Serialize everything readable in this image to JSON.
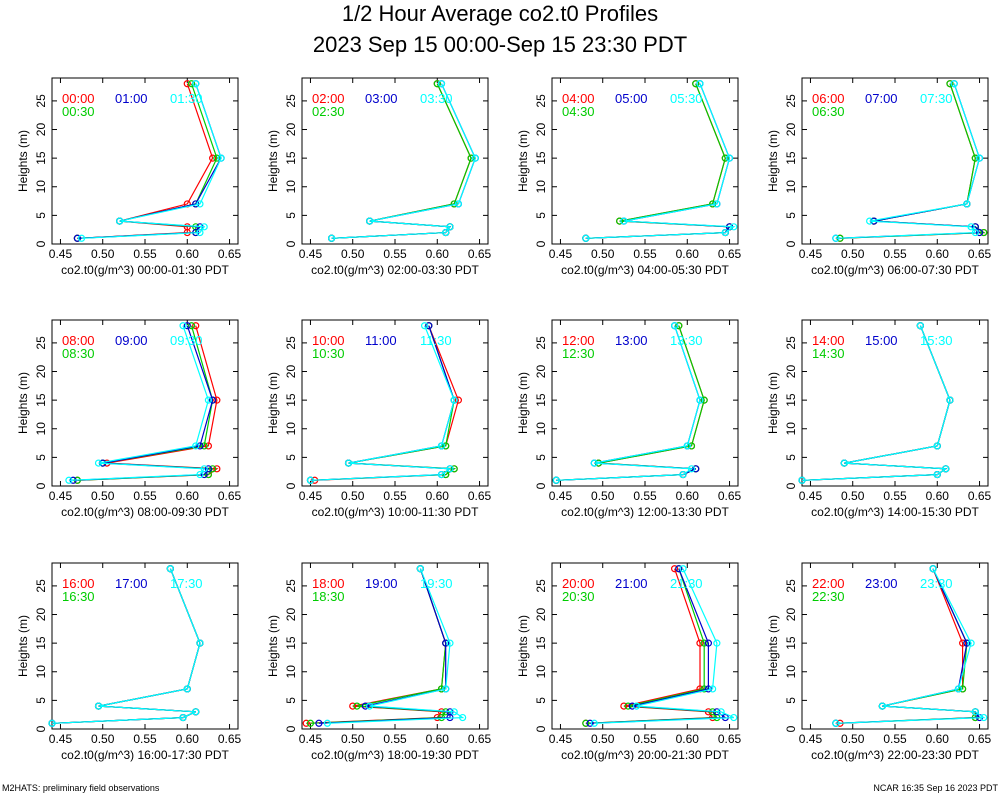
{
  "title": "1/2 Hour Average co2.t0 Profiles",
  "subtitle": "2023 Sep 15 00:00-Sep 15 23:30 PDT",
  "footer_left": "M2HATS: preliminary field observations",
  "footer_right": "NCAR 16:35 Sep 16 2023 PDT",
  "colors": {
    "series1": "#ff0000",
    "series2": "#00cc00",
    "series3": "#0000cc",
    "series4": "#00ffff"
  },
  "chart_data": [
    {
      "type": "line",
      "xlabel": "co2.t0(g/m^3) 00:00-01:30 PDT",
      "ylabel": "Heights (m)",
      "xlim": [
        0.44,
        0.66
      ],
      "ylim": [
        0,
        29
      ],
      "xticks": [
        0.45,
        0.5,
        0.55,
        0.6,
        0.65
      ],
      "yticks": [
        0,
        5,
        10,
        15,
        20,
        25
      ],
      "heights": [
        1,
        2,
        3,
        4,
        7,
        15,
        28
      ],
      "series": [
        {
          "name": "00:00",
          "values": [
            0.47,
            0.6,
            0.6,
            0.52,
            0.6,
            0.63,
            0.6
          ]
        },
        {
          "name": "00:30",
          "values": [
            0.47,
            0.61,
            0.61,
            0.52,
            0.61,
            0.635,
            0.605
          ]
        },
        {
          "name": "01:00",
          "values": [
            0.47,
            0.61,
            0.615,
            0.52,
            0.61,
            0.64,
            0.61
          ]
        },
        {
          "name": "01:30",
          "values": [
            0.475,
            0.615,
            0.62,
            0.52,
            0.615,
            0.64,
            0.61
          ]
        }
      ]
    },
    {
      "type": "line",
      "xlabel": "co2.t0(g/m^3) 02:00-03:30 PDT",
      "ylabel": "Heights (m)",
      "xlim": [
        0.44,
        0.66
      ],
      "ylim": [
        0,
        29
      ],
      "xticks": [
        0.45,
        0.5,
        0.55,
        0.6,
        0.65
      ],
      "yticks": [
        0,
        5,
        10,
        15,
        20,
        25
      ],
      "heights": [
        1,
        2,
        3,
        4,
        7,
        15,
        28
      ],
      "series": [
        {
          "name": "02:00",
          "values": [
            0.475,
            0.61,
            0.615,
            0.52,
            0.62,
            0.64,
            0.6
          ]
        },
        {
          "name": "02:30",
          "values": [
            0.475,
            0.61,
            0.615,
            0.52,
            0.62,
            0.64,
            0.6
          ]
        },
        {
          "name": "03:00",
          "values": [
            0.475,
            0.61,
            0.615,
            0.52,
            0.625,
            0.645,
            0.605
          ]
        },
        {
          "name": "03:30",
          "values": [
            0.475,
            0.61,
            0.615,
            0.52,
            0.625,
            0.645,
            0.605
          ]
        }
      ]
    },
    {
      "type": "line",
      "xlabel": "co2.t0(g/m^3) 04:00-05:30 PDT",
      "ylabel": "Heights (m)",
      "xlim": [
        0.44,
        0.66
      ],
      "ylim": [
        0,
        29
      ],
      "xticks": [
        0.45,
        0.5,
        0.55,
        0.6,
        0.65
      ],
      "yticks": [
        0,
        5,
        10,
        15,
        20,
        25
      ],
      "heights": [
        1,
        2,
        3,
        4,
        7,
        15,
        28
      ],
      "series": [
        {
          "name": "04:00",
          "values": [
            0.48,
            0.645,
            0.65,
            0.52,
            0.63,
            0.645,
            0.61
          ]
        },
        {
          "name": "04:30",
          "values": [
            0.48,
            0.645,
            0.65,
            0.52,
            0.63,
            0.645,
            0.61
          ]
        },
        {
          "name": "05:00",
          "values": [
            0.48,
            0.645,
            0.65,
            0.525,
            0.635,
            0.65,
            0.615
          ]
        },
        {
          "name": "05:30",
          "values": [
            0.48,
            0.645,
            0.655,
            0.525,
            0.635,
            0.65,
            0.615
          ]
        }
      ]
    },
    {
      "type": "line",
      "xlabel": "co2.t0(g/m^3) 06:00-07:30 PDT",
      "ylabel": "Heights (m)",
      "xlim": [
        0.44,
        0.66
      ],
      "ylim": [
        0,
        29
      ],
      "xticks": [
        0.45,
        0.5,
        0.55,
        0.6,
        0.65
      ],
      "yticks": [
        0,
        5,
        10,
        15,
        20,
        25
      ],
      "heights": [
        1,
        2,
        3,
        4,
        7,
        15,
        28
      ],
      "series": [
        {
          "name": "06:00",
          "values": [
            0.485,
            0.655,
            0.645,
            0.525,
            0.635,
            0.645,
            0.615
          ]
        },
        {
          "name": "06:30",
          "values": [
            0.485,
            0.655,
            0.645,
            0.525,
            0.635,
            0.645,
            0.615
          ]
        },
        {
          "name": "07:00",
          "values": [
            0.48,
            0.65,
            0.645,
            0.525,
            0.635,
            0.65,
            0.62
          ]
        },
        {
          "name": "07:30",
          "values": [
            0.48,
            0.645,
            0.64,
            0.52,
            0.635,
            0.65,
            0.62
          ]
        }
      ]
    },
    {
      "type": "line",
      "xlabel": "co2.t0(g/m^3) 08:00-09:30 PDT",
      "ylabel": "Heights (m)",
      "xlim": [
        0.44,
        0.66
      ],
      "ylim": [
        0,
        29
      ],
      "xticks": [
        0.45,
        0.5,
        0.55,
        0.6,
        0.65
      ],
      "yticks": [
        0,
        5,
        10,
        15,
        20,
        25
      ],
      "heights": [
        1,
        2,
        3,
        4,
        7,
        15,
        28
      ],
      "series": [
        {
          "name": "08:00",
          "values": [
            0.47,
            0.625,
            0.635,
            0.505,
            0.625,
            0.635,
            0.61
          ]
        },
        {
          "name": "08:30",
          "values": [
            0.47,
            0.625,
            0.63,
            0.5,
            0.62,
            0.63,
            0.605
          ]
        },
        {
          "name": "09:00",
          "values": [
            0.465,
            0.62,
            0.625,
            0.5,
            0.615,
            0.63,
            0.6
          ]
        },
        {
          "name": "09:30",
          "values": [
            0.46,
            0.615,
            0.62,
            0.495,
            0.61,
            0.625,
            0.595
          ]
        }
      ]
    },
    {
      "type": "line",
      "xlabel": "co2.t0(g/m^3) 10:00-11:30 PDT",
      "ylabel": "Heights (m)",
      "xlim": [
        0.44,
        0.66
      ],
      "ylim": [
        0,
        29
      ],
      "xticks": [
        0.45,
        0.5,
        0.55,
        0.6,
        0.65
      ],
      "yticks": [
        0,
        5,
        10,
        15,
        20,
        25
      ],
      "heights": [
        1,
        2,
        3,
        4,
        7,
        15,
        28
      ],
      "series": [
        {
          "name": "10:00",
          "values": [
            0.455,
            0.61,
            0.62,
            0.495,
            0.61,
            0.625,
            0.59
          ]
        },
        {
          "name": "10:30",
          "values": [
            0.45,
            0.61,
            0.62,
            0.495,
            0.61,
            0.62,
            0.59
          ]
        },
        {
          "name": "11:00",
          "values": [
            0.45,
            0.605,
            0.615,
            0.495,
            0.605,
            0.62,
            0.59
          ]
        },
        {
          "name": "11:30",
          "values": [
            0.45,
            0.605,
            0.615,
            0.495,
            0.605,
            0.62,
            0.585
          ]
        }
      ]
    },
    {
      "type": "line",
      "xlabel": "co2.t0(g/m^3) 12:00-13:30 PDT",
      "ylabel": "Heights (m)",
      "xlim": [
        0.44,
        0.66
      ],
      "ylim": [
        0,
        29
      ],
      "xticks": [
        0.45,
        0.5,
        0.55,
        0.6,
        0.65
      ],
      "yticks": [
        0,
        5,
        10,
        15,
        20,
        25
      ],
      "heights": [
        1,
        2,
        3,
        4,
        7,
        15,
        28
      ],
      "series": [
        {
          "name": "12:00",
          "values": [
            0.445,
            0.595,
            0.61,
            0.495,
            0.605,
            0.62,
            0.59
          ]
        },
        {
          "name": "12:30",
          "values": [
            0.445,
            0.595,
            0.61,
            0.495,
            0.605,
            0.62,
            0.59
          ]
        },
        {
          "name": "13:00",
          "values": [
            0.445,
            0.595,
            0.61,
            0.49,
            0.6,
            0.615,
            0.585
          ]
        },
        {
          "name": "13:30",
          "values": [
            0.445,
            0.595,
            0.605,
            0.49,
            0.6,
            0.615,
            0.585
          ]
        }
      ]
    },
    {
      "type": "line",
      "xlabel": "co2.t0(g/m^3) 14:00-15:30 PDT",
      "ylabel": "Heights (m)",
      "xlim": [
        0.44,
        0.66
      ],
      "ylim": [
        0,
        29
      ],
      "xticks": [
        0.45,
        0.5,
        0.55,
        0.6,
        0.65
      ],
      "yticks": [
        0,
        5,
        10,
        15,
        20,
        25
      ],
      "heights": [
        1,
        2,
        3,
        4,
        7,
        15,
        28
      ],
      "series": [
        {
          "name": "14:00",
          "values": [
            0.44,
            0.6,
            0.61,
            0.49,
            0.6,
            0.615,
            0.58
          ]
        },
        {
          "name": "14:30",
          "values": [
            0.44,
            0.6,
            0.61,
            0.49,
            0.6,
            0.615,
            0.58
          ]
        },
        {
          "name": "15:00",
          "values": [
            0.44,
            0.6,
            0.61,
            0.49,
            0.6,
            0.615,
            0.58
          ]
        },
        {
          "name": "15:30",
          "values": [
            0.44,
            0.6,
            0.61,
            0.49,
            0.6,
            0.615,
            0.58
          ]
        }
      ]
    },
    {
      "type": "line",
      "xlabel": "co2.t0(g/m^3) 16:00-17:30 PDT",
      "ylabel": "Heights (m)",
      "xlim": [
        0.44,
        0.66
      ],
      "ylim": [
        0,
        29
      ],
      "xticks": [
        0.45,
        0.5,
        0.55,
        0.6,
        0.65
      ],
      "yticks": [
        0,
        5,
        10,
        15,
        20,
        25
      ],
      "heights": [
        1,
        2,
        3,
        4,
        7,
        15,
        28
      ],
      "series": [
        {
          "name": "16:00",
          "values": [
            0.44,
            0.595,
            0.61,
            0.495,
            0.6,
            0.615,
            0.58
          ]
        },
        {
          "name": "16:30",
          "values": [
            0.44,
            0.595,
            0.61,
            0.495,
            0.6,
            0.615,
            0.58
          ]
        },
        {
          "name": "17:00",
          "values": [
            0.44,
            0.595,
            0.61,
            0.495,
            0.6,
            0.615,
            0.58
          ]
        },
        {
          "name": "17:30",
          "values": [
            0.44,
            0.595,
            0.61,
            0.495,
            0.6,
            0.615,
            0.58
          ]
        }
      ]
    },
    {
      "type": "line",
      "xlabel": "co2.t0(g/m^3) 18:00-19:30 PDT",
      "ylabel": "Heights (m)",
      "xlim": [
        0.44,
        0.66
      ],
      "ylim": [
        0,
        29
      ],
      "xticks": [
        0.45,
        0.5,
        0.55,
        0.6,
        0.65
      ],
      "yticks": [
        0,
        5,
        10,
        15,
        20,
        25
      ],
      "heights": [
        1,
        2,
        3,
        4,
        7,
        15,
        28
      ],
      "series": [
        {
          "name": "18:00",
          "values": [
            0.445,
            0.6,
            0.605,
            0.5,
            0.605,
            0.61,
            0.58
          ]
        },
        {
          "name": "18:30",
          "values": [
            0.45,
            0.605,
            0.61,
            0.505,
            0.605,
            0.61,
            0.58
          ]
        },
        {
          "name": "19:00",
          "values": [
            0.46,
            0.615,
            0.615,
            0.515,
            0.61,
            0.61,
            0.58
          ]
        },
        {
          "name": "19:30",
          "values": [
            0.47,
            0.63,
            0.62,
            0.52,
            0.61,
            0.615,
            0.58
          ]
        }
      ]
    },
    {
      "type": "line",
      "xlabel": "co2.t0(g/m^3) 20:00-21:30 PDT",
      "ylabel": "Heights (m)",
      "xlim": [
        0.44,
        0.66
      ],
      "ylim": [
        0,
        29
      ],
      "xticks": [
        0.45,
        0.5,
        0.55,
        0.6,
        0.65
      ],
      "yticks": [
        0,
        5,
        10,
        15,
        20,
        25
      ],
      "heights": [
        1,
        2,
        3,
        4,
        7,
        15,
        28
      ],
      "series": [
        {
          "name": "20:00",
          "values": [
            0.48,
            0.63,
            0.625,
            0.525,
            0.615,
            0.615,
            0.585
          ]
        },
        {
          "name": "20:30",
          "values": [
            0.48,
            0.635,
            0.63,
            0.53,
            0.62,
            0.62,
            0.59
          ]
        },
        {
          "name": "21:00",
          "values": [
            0.485,
            0.645,
            0.635,
            0.535,
            0.625,
            0.625,
            0.59
          ]
        },
        {
          "name": "21:30",
          "values": [
            0.49,
            0.655,
            0.64,
            0.54,
            0.63,
            0.635,
            0.595
          ]
        }
      ]
    },
    {
      "type": "line",
      "xlabel": "co2.t0(g/m^3) 22:00-23:30 PDT",
      "ylabel": "Heights (m)",
      "xlim": [
        0.44,
        0.66
      ],
      "ylim": [
        0,
        29
      ],
      "xticks": [
        0.45,
        0.5,
        0.55,
        0.6,
        0.65
      ],
      "yticks": [
        0,
        5,
        10,
        15,
        20,
        25
      ],
      "heights": [
        1,
        2,
        3,
        4,
        7,
        15,
        28
      ],
      "series": [
        {
          "name": "22:00",
          "values": [
            0.485,
            0.645,
            0.645,
            0.535,
            0.63,
            0.63,
            0.595
          ]
        },
        {
          "name": "22:30",
          "values": [
            0.48,
            0.645,
            0.645,
            0.535,
            0.63,
            0.635,
            0.595
          ]
        },
        {
          "name": "23:00",
          "values": [
            0.48,
            0.65,
            0.645,
            0.535,
            0.625,
            0.635,
            0.595
          ]
        },
        {
          "name": "23:30",
          "values": [
            0.48,
            0.655,
            0.645,
            0.535,
            0.625,
            0.64,
            0.595
          ]
        }
      ]
    }
  ]
}
